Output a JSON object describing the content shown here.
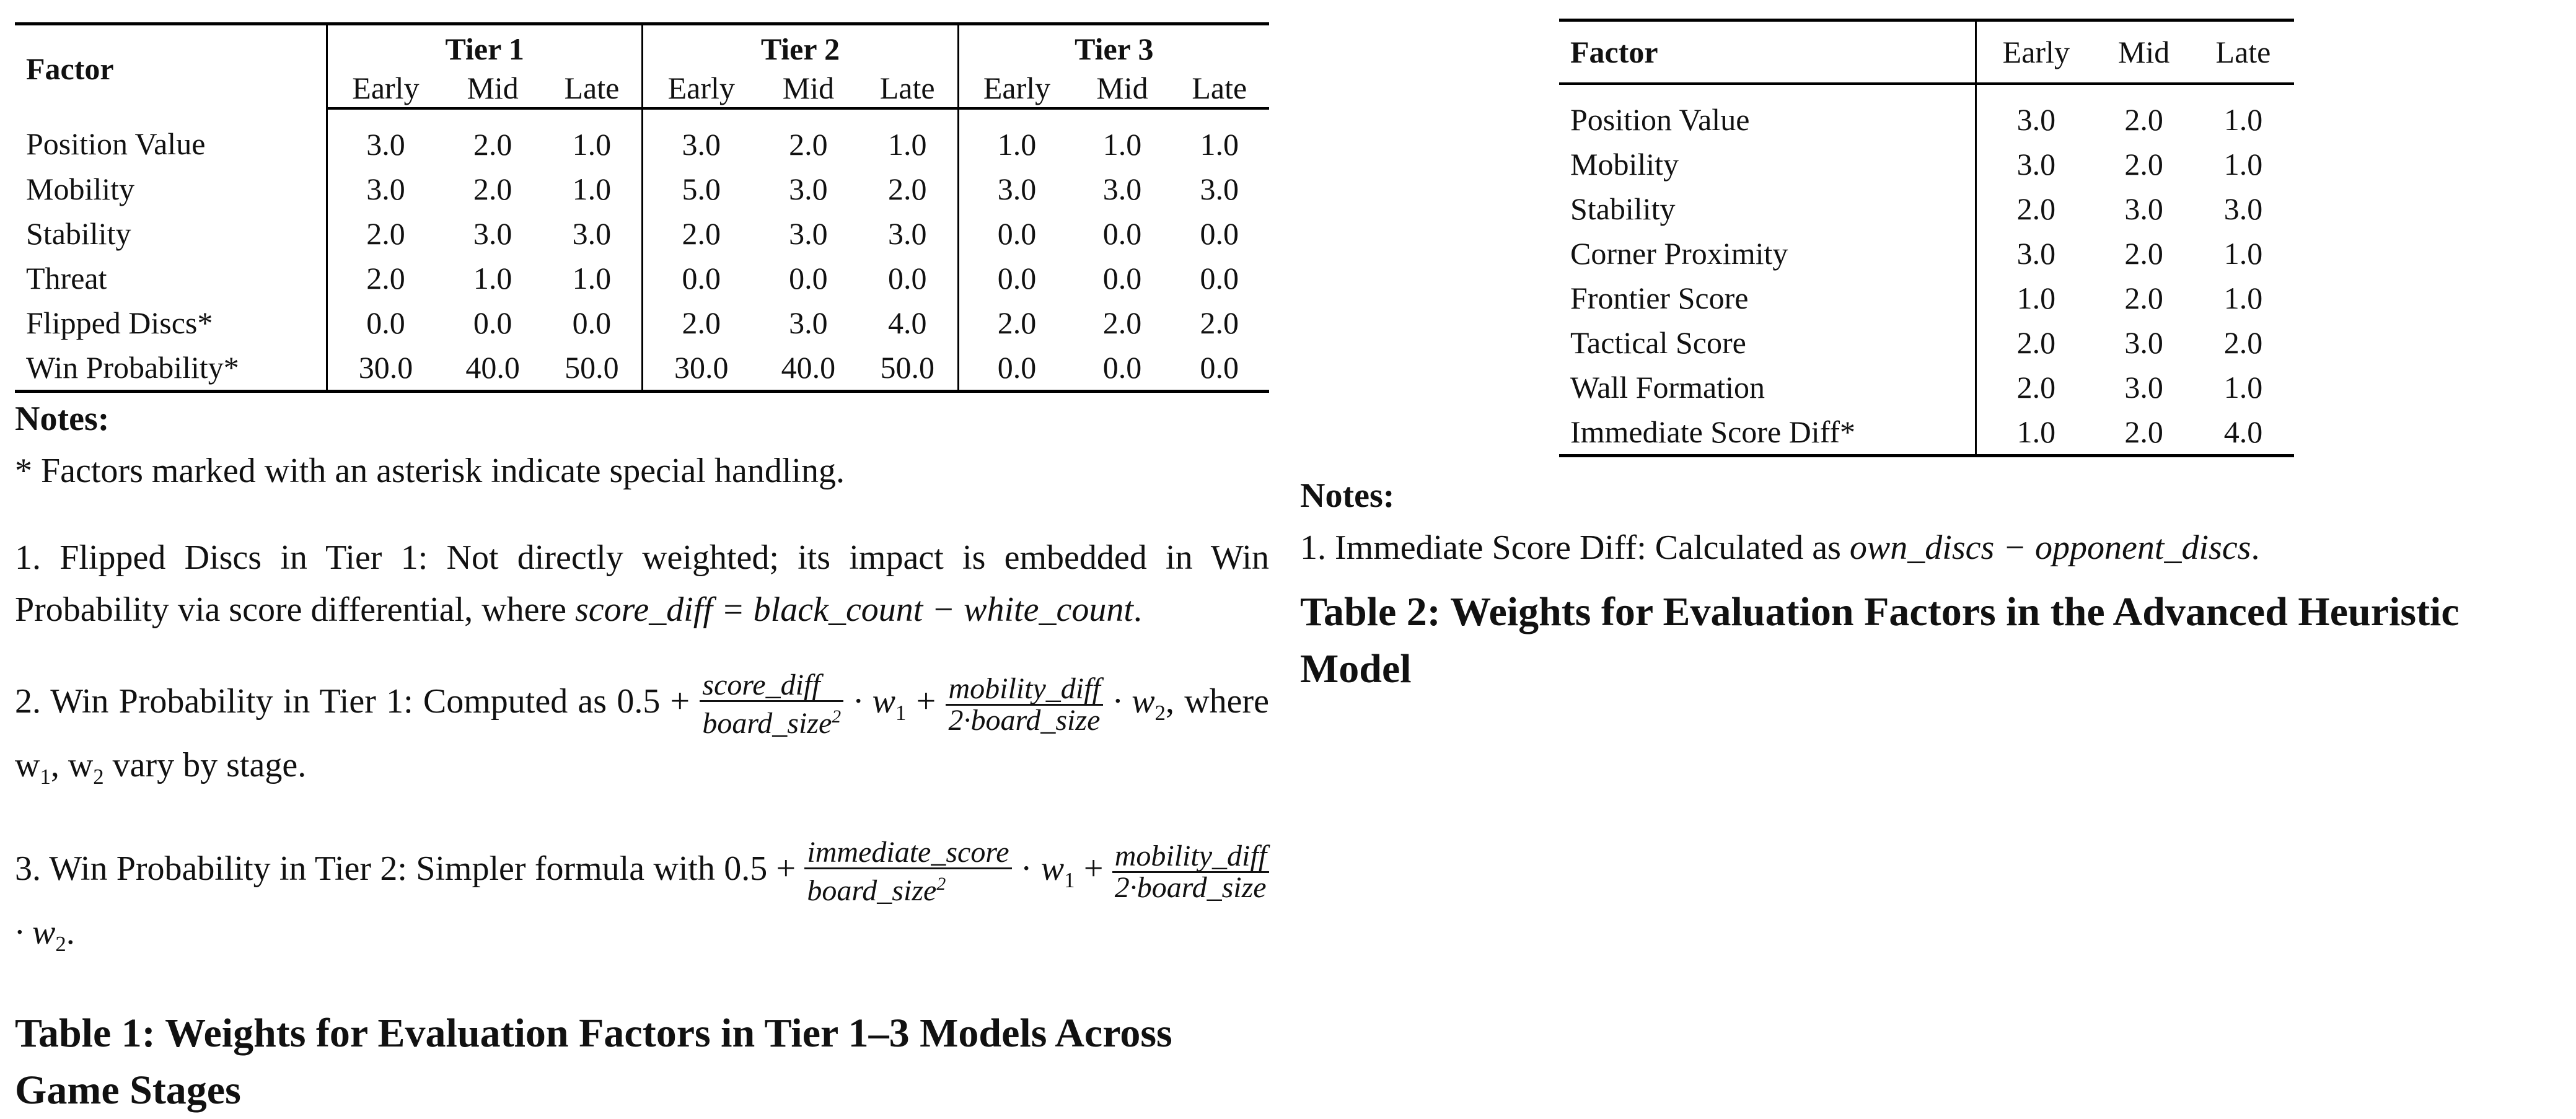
{
  "table1": {
    "factor_label": "Factor",
    "tiers": [
      "Tier 1",
      "Tier 2",
      "Tier 3"
    ],
    "stages": [
      "Early",
      "Mid",
      "Late"
    ],
    "rows": [
      {
        "factor": "Position Value",
        "values": [
          "3.0",
          "2.0",
          "1.0",
          "3.0",
          "2.0",
          "1.0",
          "1.0",
          "1.0",
          "1.0"
        ]
      },
      {
        "factor": "Mobility",
        "values": [
          "3.0",
          "2.0",
          "1.0",
          "5.0",
          "3.0",
          "2.0",
          "3.0",
          "3.0",
          "3.0"
        ]
      },
      {
        "factor": "Stability",
        "values": [
          "2.0",
          "3.0",
          "3.0",
          "2.0",
          "3.0",
          "3.0",
          "0.0",
          "0.0",
          "0.0"
        ]
      },
      {
        "factor": "Threat",
        "values": [
          "2.0",
          "1.0",
          "1.0",
          "0.0",
          "0.0",
          "0.0",
          "0.0",
          "0.0",
          "0.0"
        ]
      },
      {
        "factor": "Flipped Discs*",
        "values": [
          "0.0",
          "0.0",
          "0.0",
          "2.0",
          "3.0",
          "4.0",
          "2.0",
          "2.0",
          "2.0"
        ]
      },
      {
        "factor": "Win Probability*",
        "values": [
          "30.0",
          "40.0",
          "50.0",
          "30.0",
          "40.0",
          "50.0",
          "0.0",
          "0.0",
          "0.0"
        ]
      }
    ],
    "notes_title": "Notes:",
    "note_star": "* Factors marked with an asterisk indicate special handling.",
    "note1_text": "1. Flipped Discs in Tier 1: Not directly weighted; its impact is embedded in Win Probability via score differential, where",
    "note1_formula": "score_diff = black_count − white_count",
    "note1_end": ".",
    "note2_text": "2. Win Probability in Tier 1: Computed as 0.5 +",
    "note2_frac1_num": "score_diff",
    "note2_frac1_den": "board_size",
    "note2_w1": "· w",
    "note2_plus": "+",
    "note2_frac2_num": "mobility_diff",
    "note2_frac2_den": "2·board_size",
    "note2_w2": "· w",
    "note2_tail": ", where w",
    "note2_tail_mid": ", w",
    "note2_tail_end": " vary by stage.",
    "note3_text": "3. Win Probability in Tier 2: Simpler formula with 0.5 +",
    "note3_frac1_num": "immediate_score",
    "note3_frac1_den": "board_size",
    "note3_w1": "·",
    "note3_w1b": "w",
    "note3_plus": "+",
    "note3_frac2_num": "mobility_diff",
    "note3_frac2_den": "2·board_size",
    "note3_w2": "· w",
    "note3_end": ".",
    "caption": "Table 1: Weights for Evaluation Factors in Tier 1–3 Models Across Game Stages"
  },
  "table2": {
    "factor_label": "Factor",
    "stages": [
      "Early",
      "Mid",
      "Late"
    ],
    "rows": [
      {
        "factor": "Position Value",
        "values": [
          "3.0",
          "2.0",
          "1.0"
        ]
      },
      {
        "factor": "Mobility",
        "values": [
          "3.0",
          "2.0",
          "1.0"
        ]
      },
      {
        "factor": "Stability",
        "values": [
          "2.0",
          "3.0",
          "3.0"
        ]
      },
      {
        "factor": "Corner Proximity",
        "values": [
          "3.0",
          "2.0",
          "1.0"
        ]
      },
      {
        "factor": "Frontier Score",
        "values": [
          "1.0",
          "2.0",
          "1.0"
        ]
      },
      {
        "factor": "Tactical Score",
        "values": [
          "2.0",
          "3.0",
          "2.0"
        ]
      },
      {
        "factor": "Wall Formation",
        "values": [
          "2.0",
          "3.0",
          "1.0"
        ]
      },
      {
        "factor": "Immediate Score Diff*",
        "values": [
          "1.0",
          "2.0",
          "4.0"
        ]
      }
    ],
    "notes_title": "Notes:",
    "note1_text": "1. Immediate Score Diff: Calculated as",
    "note1_formula": "own_discs − opponent_discs",
    "note1_end": ".",
    "caption": "Table 2: Weights for Evaluation Factors in the Advanced Heuristic Model"
  }
}
